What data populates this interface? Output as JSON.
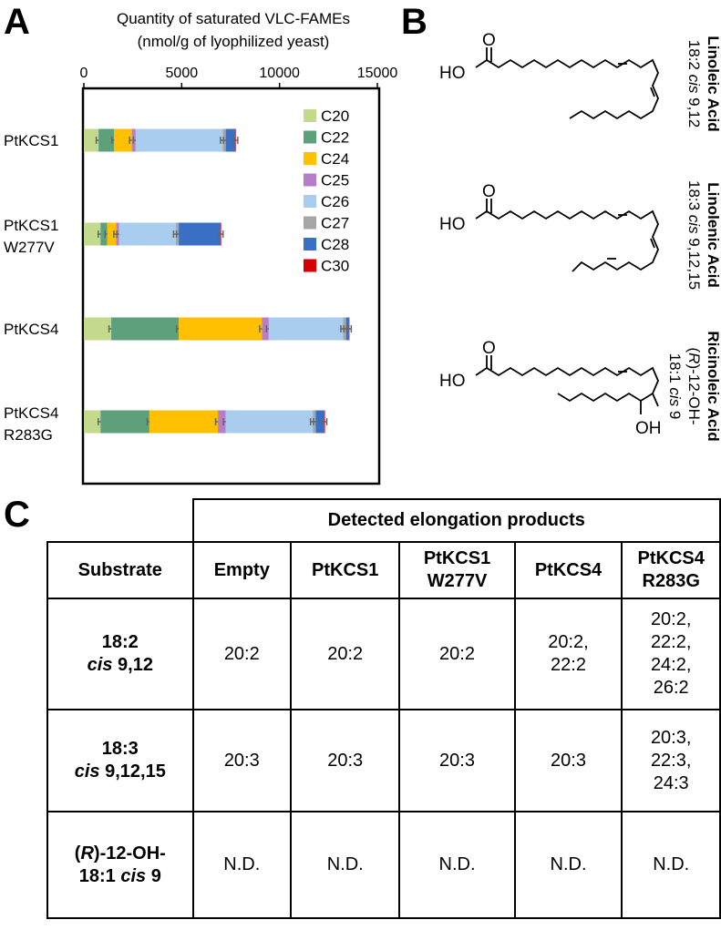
{
  "panels": {
    "a": "A",
    "b": "B",
    "c": "C"
  },
  "chart_data": {
    "type": "bar",
    "orientation": "horizontal",
    "stacked": true,
    "title_line1": "Quantity of saturated VLC-FAMEs",
    "title_line2": "(nmol/g of lyophilized yeast)",
    "xlim": [
      0,
      15000
    ],
    "xticks": [
      "0",
      "5000",
      "10000",
      "15000"
    ],
    "xtick_values": [
      0,
      5000,
      10000,
      15000
    ],
    "axis_position": "top",
    "legend_position": "top-right",
    "grid": false,
    "categories": [
      {
        "line1": "PtKCS1",
        "line2": ""
      },
      {
        "line1": "PtKCS1",
        "line2": "W277V"
      },
      {
        "line1": "PtKCS4",
        "line2": ""
      },
      {
        "line1": "PtKCS4",
        "line2": "R283G"
      }
    ],
    "series": [
      {
        "name": "C20",
        "color": "#c3d98b",
        "values": [
          750,
          850,
          1400,
          850
        ]
      },
      {
        "name": "C22",
        "color": "#5fa07c",
        "values": [
          800,
          350,
          3450,
          2500
        ]
      },
      {
        "name": "C24",
        "color": "#ffc000",
        "values": [
          900,
          450,
          4250,
          3500
        ]
      },
      {
        "name": "C25",
        "color": "#b67ec9",
        "values": [
          200,
          150,
          350,
          400
        ]
      },
      {
        "name": "C26",
        "color": "#a9cdee",
        "values": [
          4450,
          2900,
          3800,
          4450
        ]
      },
      {
        "name": "C27",
        "color": "#a6a6a6",
        "values": [
          150,
          150,
          150,
          150
        ]
      },
      {
        "name": "C28",
        "color": "#3a6fc6",
        "values": [
          500,
          2150,
          150,
          450
        ]
      },
      {
        "name": "C30",
        "color": "#d60000",
        "values": [
          20,
          20,
          20,
          20
        ]
      }
    ]
  },
  "structures": [
    {
      "name": "Linoleic Acid",
      "line2_a": "18:2 ",
      "line2_i": "cis",
      "line2_b": " 9,12",
      "line3_a": "",
      "line3_i": "",
      "line3_b": "",
      "ho": "HO",
      "o": "O",
      "oh": ""
    },
    {
      "name": "Linolenic Acid",
      "line2_a": "18:3 ",
      "line2_i": "cis",
      "line2_b": " 9,12,15",
      "line3_a": "",
      "line3_i": "",
      "line3_b": "",
      "ho": "HO",
      "o": "O",
      "oh": ""
    },
    {
      "name": "Ricinoleic Acid",
      "line2_a": "(",
      "line2_i": "R",
      "line2_b": ")-12-OH-",
      "line3_a": "18:1 ",
      "line3_i": "cis",
      "line3_b": " 9",
      "ho": "HO",
      "o": "O",
      "oh": "OH"
    }
  ],
  "table": {
    "group_header": "Detected elongation products",
    "columns": [
      {
        "line1": "Substrate",
        "line2": ""
      },
      {
        "line1": "Empty",
        "line2": ""
      },
      {
        "line1": "PtKCS1",
        "line2": ""
      },
      {
        "line1": "PtKCS1",
        "line2": "W277V"
      },
      {
        "line1": "PtKCS4",
        "line2": ""
      },
      {
        "line1": "PtKCS4",
        "line2": "R283G"
      }
    ],
    "rows": [
      {
        "substrate": {
          "l1a": "18:2",
          "l1i": "",
          "l1b": "",
          "l2a": "",
          "l2i": "cis",
          "l2b": " 9,12"
        },
        "cells": [
          [
            "20:2"
          ],
          [
            "20:2"
          ],
          [
            "20:2"
          ],
          [
            "20:2,",
            "22:2"
          ],
          [
            "20:2,",
            "22:2,",
            "24:2,",
            "26:2"
          ]
        ]
      },
      {
        "substrate": {
          "l1a": "18:3",
          "l1i": "",
          "l1b": "",
          "l2a": "",
          "l2i": "cis",
          "l2b": " 9,12,15"
        },
        "cells": [
          [
            "20:3"
          ],
          [
            "20:3"
          ],
          [
            "20:3"
          ],
          [
            "20:3"
          ],
          [
            "20:3,",
            "22:3,",
            "24:3"
          ]
        ]
      },
      {
        "substrate": {
          "l1a": "(",
          "l1i": "R",
          "l1b": ")-12-OH-",
          "l2a": "18:1 ",
          "l2i": "cis",
          "l2b": " 9"
        },
        "cells": [
          [
            "N.D."
          ],
          [
            "N.D."
          ],
          [
            "N.D."
          ],
          [
            "N.D."
          ],
          [
            "N.D."
          ]
        ]
      }
    ]
  }
}
